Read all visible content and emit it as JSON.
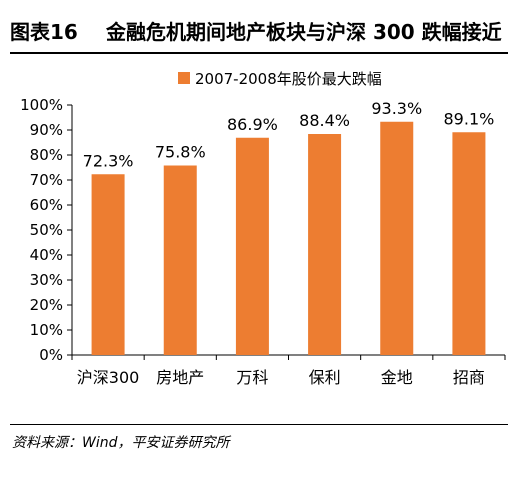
{
  "header": {
    "figure_label": "图表16",
    "title": "金融危机期间地产板块与沪深 300 跌幅接近"
  },
  "footer": {
    "source": "资料来源：Wind，平安证券研究所"
  },
  "colors": {
    "bar": "#ED7D31",
    "axis": "#000000"
  },
  "chart_data": {
    "type": "bar",
    "categories": [
      "沪深300",
      "房地产",
      "万科",
      "保利",
      "金地",
      "招商"
    ],
    "series": [
      {
        "name": "2007-2008年股价最大跌幅",
        "values": [
          72.3,
          75.8,
          86.9,
          88.4,
          93.3,
          89.1
        ],
        "labels": [
          "72.3%",
          "75.8%",
          "86.9%",
          "88.4%",
          "93.3%",
          "89.1%"
        ]
      }
    ],
    "ylim": [
      0,
      100
    ],
    "yticks": [
      "0%",
      "10%",
      "20%",
      "30%",
      "40%",
      "50%",
      "60%",
      "70%",
      "80%",
      "90%",
      "100%"
    ],
    "grid": false,
    "legend_position": "top"
  }
}
